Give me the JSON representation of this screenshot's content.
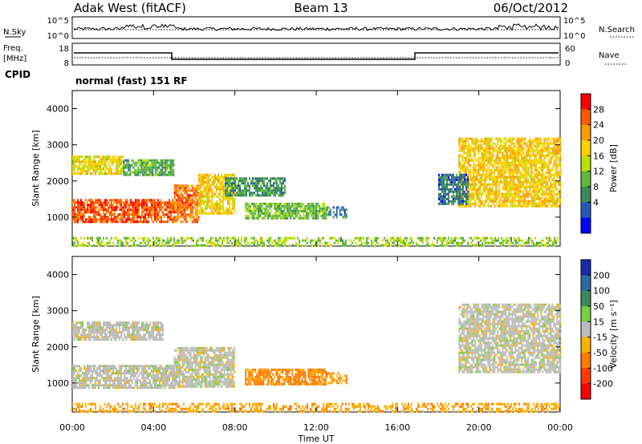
{
  "header": {
    "station": "Adak West (fitACF)",
    "beam": "Beam 13",
    "date": "06/Oct/2012"
  },
  "noise_panel": {
    "left_label": "N.Sky",
    "right_label": "N.Search",
    "left_ticks": [
      "10^5",
      "10^0"
    ],
    "right_ticks": [
      "10^5",
      "10^0"
    ]
  },
  "freq_panel": {
    "left_label_1": "Freq.",
    "left_label_2": "[MHz]",
    "right_label": "Nave",
    "left_ticks": [
      "18",
      "8"
    ],
    "right_ticks": [
      "60",
      "0"
    ],
    "cpid_label": "CPID",
    "cpid_text": "normal (fast) 151 RF"
  },
  "chart_data": [
    {
      "type": "heatmap",
      "name": "power",
      "ylabel": "Slant Range [km]",
      "y_ticks": [
        "4000",
        "3000",
        "2000",
        "1000"
      ],
      "ylim": [
        200,
        4500
      ],
      "x_ticks": [
        "00:00",
        "04:00",
        "08:00",
        "12:00",
        "16:00",
        "20:00",
        "00:00"
      ],
      "xlim_hours": [
        0,
        24
      ],
      "colorbar_label": "Power [dB]",
      "colorbar_ticks": [
        "28",
        "24",
        "20",
        "16",
        "12",
        "8",
        "4"
      ],
      "colorbar_colors": [
        "#ff0000",
        "#ff5a00",
        "#ff9a00",
        "#ffd000",
        "#b8e000",
        "#5fb83a",
        "#3a8a5a",
        "#2a5ab8",
        "#0000ff"
      ],
      "regions": [
        {
          "t0": 0.0,
          "t1": 5.0,
          "r0": 900,
          "r1": 1500,
          "level": 28
        },
        {
          "t0": 5.0,
          "t1": 6.2,
          "r0": 900,
          "r1": 1900,
          "level": 26
        },
        {
          "t0": 6.2,
          "t1": 8.0,
          "r0": 1100,
          "r1": 2200,
          "level": 20
        },
        {
          "t0": 0.0,
          "t1": 2.5,
          "r0": 2200,
          "r1": 2700,
          "level": 18
        },
        {
          "t0": 2.5,
          "t1": 5.0,
          "r0": 2200,
          "r1": 2600,
          "level": 10
        },
        {
          "t0": 7.5,
          "t1": 10.5,
          "r0": 1600,
          "r1": 2100,
          "level": 8
        },
        {
          "t0": 8.5,
          "t1": 12.5,
          "r0": 950,
          "r1": 1400,
          "level": 12
        },
        {
          "t0": 12.5,
          "t1": 13.5,
          "r0": 1000,
          "r1": 1300,
          "level": 6
        },
        {
          "t0": 19.0,
          "t1": 24.0,
          "r0": 1300,
          "r1": 3200,
          "level": 20
        },
        {
          "t0": 18.0,
          "t1": 19.5,
          "r0": 1400,
          "r1": 2200,
          "level": 6
        },
        {
          "t0": 0.0,
          "t1": 24.0,
          "r0": 200,
          "r1": 450,
          "level": 14
        }
      ]
    },
    {
      "type": "heatmap",
      "name": "velocity",
      "ylabel": "Slant Range [km]",
      "y_ticks": [
        "4000",
        "3000",
        "2000",
        "1000"
      ],
      "ylim": [
        200,
        4500
      ],
      "x_ticks": [
        "00:00",
        "04:00",
        "08:00",
        "12:00",
        "16:00",
        "20:00",
        "00:00"
      ],
      "xlim_hours": [
        0,
        24
      ],
      "xlabel": "Time UT",
      "colorbar_label": "Velocity [m s⁻¹]",
      "colorbar_ticks": [
        "200",
        "100",
        "50",
        "15",
        "-15",
        "-50",
        "-100",
        "-200"
      ],
      "colorbar_colors": [
        "#1a2aa8",
        "#2a6aa0",
        "#3a8a5a",
        "#7acc40",
        "#bbbbbb",
        "#ffb000",
        "#ff7a00",
        "#ff3a00",
        "#ff0000"
      ],
      "regions": [
        {
          "t0": 0.0,
          "t1": 5.0,
          "r0": 900,
          "r1": 1500,
          "level": 0
        },
        {
          "t0": 5.0,
          "t1": 8.0,
          "r0": 900,
          "r1": 2000,
          "level": 0
        },
        {
          "t0": 0.0,
          "t1": 4.5,
          "r0": 2200,
          "r1": 2700,
          "level": 0
        },
        {
          "t0": 8.5,
          "t1": 12.5,
          "r0": 950,
          "r1": 1400,
          "level": -60
        },
        {
          "t0": 12.5,
          "t1": 13.5,
          "r0": 1000,
          "r1": 1300,
          "level": -50
        },
        {
          "t0": 19.0,
          "t1": 24.0,
          "r0": 1300,
          "r1": 3200,
          "level": 0
        },
        {
          "t0": 0.0,
          "t1": 24.0,
          "r0": 200,
          "r1": 450,
          "level": -40
        }
      ]
    }
  ]
}
